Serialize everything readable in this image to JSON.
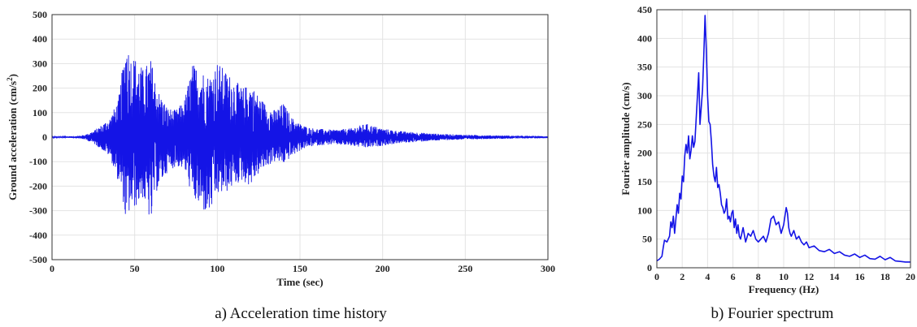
{
  "chart_data": [
    {
      "type": "line",
      "caption": "a) Acceleration time history",
      "xlabel": "Time (sec)",
      "ylabel": "Ground acceleration (cm/s",
      "ylabel_sup": "2",
      "ylabel_close": ")",
      "xlim": [
        0,
        300
      ],
      "ylim": [
        -500,
        500
      ],
      "xticks": [
        0,
        50,
        100,
        150,
        200,
        250,
        300
      ],
      "yticks": [
        -500,
        -400,
        -300,
        -200,
        -100,
        0,
        100,
        200,
        300,
        400,
        500
      ],
      "grid": true,
      "color": "#1414e6",
      "envelope": {
        "t": [
          0,
          15,
          20,
          25,
          30,
          35,
          40,
          43,
          45,
          47,
          50,
          55,
          60,
          62,
          65,
          70,
          75,
          80,
          85,
          90,
          95,
          100,
          105,
          110,
          115,
          120,
          125,
          130,
          135,
          140,
          145,
          150,
          155,
          160,
          170,
          180,
          190,
          200,
          210,
          220,
          230,
          240,
          250,
          260,
          270,
          280,
          290,
          300
        ],
        "upper": [
          2,
          4,
          10,
          25,
          50,
          80,
          150,
          300,
          420,
          340,
          330,
          280,
          320,
          250,
          180,
          120,
          110,
          150,
          300,
          280,
          250,
          310,
          270,
          240,
          200,
          220,
          170,
          130,
          110,
          140,
          80,
          55,
          40,
          35,
          30,
          35,
          55,
          35,
          25,
          20,
          15,
          12,
          10,
          8,
          7,
          6,
          5,
          4
        ],
        "lower": [
          -2,
          -4,
          -10,
          -25,
          -50,
          -80,
          -180,
          -260,
          -380,
          -300,
          -290,
          -250,
          -360,
          -240,
          -200,
          -140,
          -120,
          -130,
          -250,
          -300,
          -320,
          -240,
          -230,
          -200,
          -180,
          -200,
          -150,
          -120,
          -100,
          -110,
          -80,
          -55,
          -40,
          -35,
          -30,
          -35,
          -45,
          -35,
          -25,
          -20,
          -15,
          -12,
          -10,
          -8,
          -7,
          -6,
          -5,
          -4
        ]
      }
    },
    {
      "type": "line",
      "caption": "b) Fourier spectrum",
      "xlabel": "Frequency (Hz)",
      "ylabel": "Fourier amplitude (cm/s)",
      "xlim": [
        0,
        20
      ],
      "ylim": [
        0,
        450
      ],
      "xticks": [
        0,
        2,
        4,
        6,
        8,
        10,
        12,
        14,
        16,
        18,
        20
      ],
      "yticks": [
        0,
        50,
        100,
        150,
        200,
        250,
        300,
        350,
        400,
        450
      ],
      "grid": true,
      "color": "#1414e6",
      "x": [
        0,
        0.2,
        0.4,
        0.5,
        0.6,
        0.8,
        1.0,
        1.1,
        1.2,
        1.3,
        1.4,
        1.5,
        1.6,
        1.7,
        1.8,
        1.9,
        2.0,
        2.1,
        2.2,
        2.3,
        2.4,
        2.5,
        2.6,
        2.7,
        2.8,
        2.9,
        3.0,
        3.1,
        3.2,
        3.3,
        3.4,
        3.5,
        3.6,
        3.7,
        3.8,
        3.9,
        4.0,
        4.1,
        4.2,
        4.3,
        4.4,
        4.5,
        4.6,
        4.7,
        4.8,
        4.9,
        5.0,
        5.1,
        5.2,
        5.3,
        5.4,
        5.5,
        5.6,
        5.7,
        5.8,
        5.9,
        6.0,
        6.1,
        6.2,
        6.3,
        6.4,
        6.5,
        6.6,
        6.8,
        7.0,
        7.2,
        7.4,
        7.6,
        7.8,
        8.0,
        8.2,
        8.4,
        8.6,
        8.8,
        9.0,
        9.2,
        9.4,
        9.6,
        9.8,
        10.0,
        10.2,
        10.3,
        10.4,
        10.5,
        10.6,
        10.8,
        11.0,
        11.2,
        11.4,
        11.6,
        11.8,
        12.0,
        12.4,
        12.8,
        13.2,
        13.6,
        14.0,
        14.4,
        14.8,
        15.2,
        15.6,
        16.0,
        16.4,
        16.8,
        17.2,
        17.6,
        18.0,
        18.4,
        18.8,
        19.2,
        19.6,
        20.0
      ],
      "y": [
        12,
        15,
        20,
        35,
        48,
        45,
        55,
        80,
        70,
        90,
        60,
        85,
        110,
        95,
        130,
        120,
        160,
        150,
        195,
        215,
        200,
        230,
        190,
        205,
        230,
        210,
        220,
        260,
        300,
        340,
        250,
        280,
        310,
        370,
        440,
        380,
        300,
        255,
        250,
        220,
        180,
        160,
        150,
        175,
        140,
        145,
        130,
        110,
        105,
        95,
        100,
        120,
        85,
        90,
        80,
        95,
        100,
        70,
        85,
        60,
        75,
        55,
        50,
        70,
        45,
        60,
        55,
        65,
        50,
        45,
        50,
        55,
        45,
        60,
        85,
        90,
        75,
        80,
        60,
        75,
        105,
        95,
        70,
        60,
        55,
        65,
        50,
        55,
        45,
        40,
        45,
        35,
        38,
        30,
        28,
        32,
        25,
        28,
        22,
        20,
        24,
        18,
        22,
        16,
        15,
        20,
        14,
        18,
        12,
        11,
        10,
        10
      ]
    }
  ]
}
